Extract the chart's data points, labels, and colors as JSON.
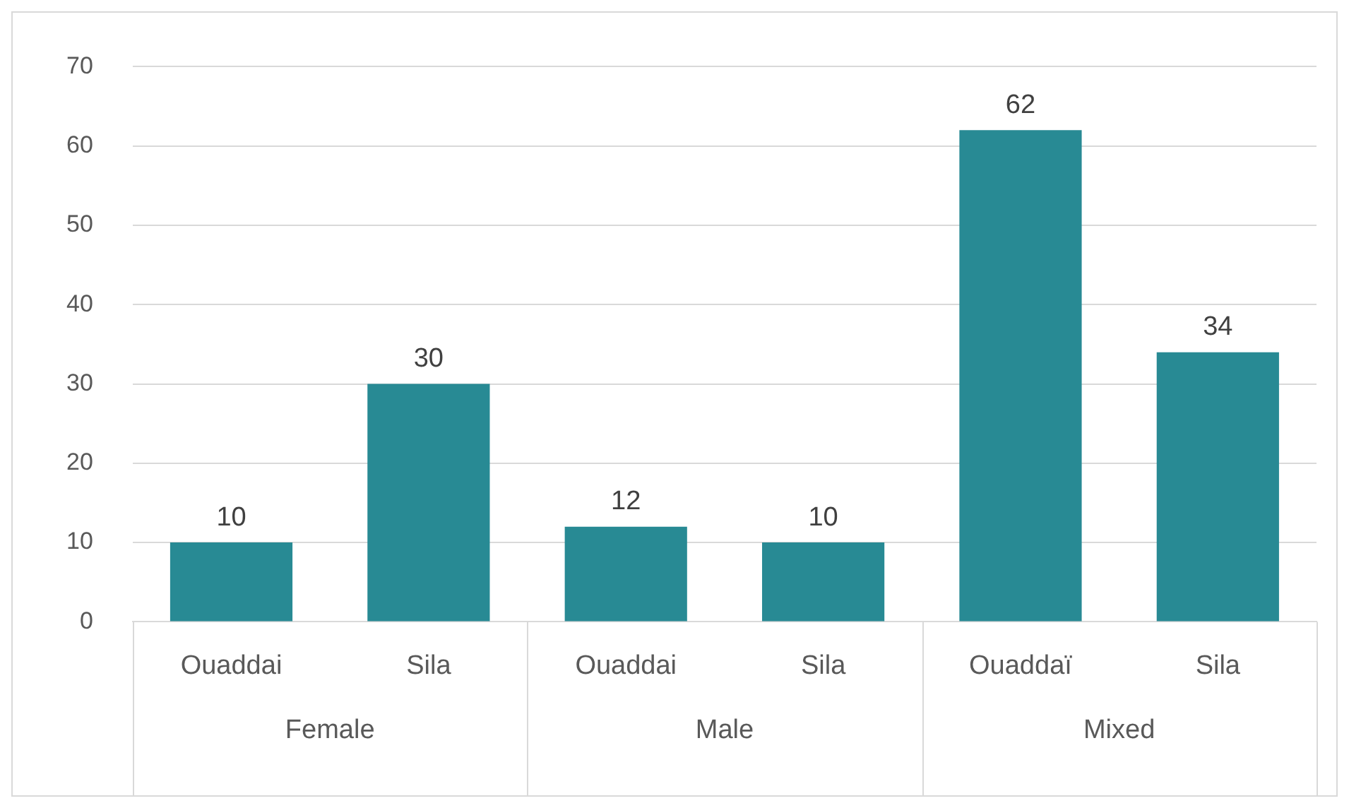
{
  "chart_data": {
    "type": "bar",
    "categories": [
      "Ouaddai",
      "Sila",
      "Ouaddai",
      "Sila",
      "Ouaddaï",
      "Sila"
    ],
    "values": [
      10,
      30,
      12,
      10,
      62,
      34
    ],
    "color": "#288a94",
    "ylim": [
      0,
      70
    ],
    "yticks": [
      0,
      10,
      20,
      30,
      40,
      50,
      60,
      70
    ],
    "grid": "y",
    "data_labels": true,
    "legend": false,
    "annotations": [
      "Female",
      "Male",
      "Mixed"
    ]
  }
}
